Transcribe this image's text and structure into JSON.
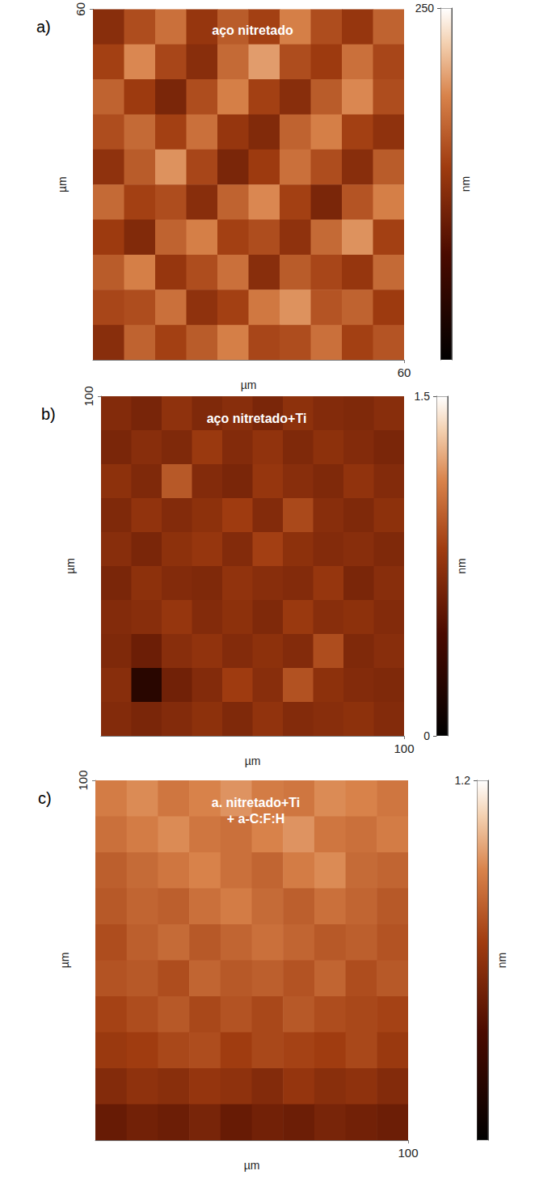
{
  "chart_data": [
    {
      "type": "heatmap",
      "label": "a)",
      "title": "aço nitretado",
      "xlabel": "µm",
      "ylabel": "µm",
      "xlim": [
        0,
        60
      ],
      "ylim": [
        0,
        60
      ],
      "xticks": [
        60
      ],
      "yticks": [
        60
      ],
      "z": [
        [
          120,
          150,
          175,
          130,
          160,
          140,
          185,
          150,
          130,
          165
        ],
        [
          140,
          190,
          145,
          120,
          170,
          200,
          150,
          135,
          175,
          145
        ],
        [
          165,
          135,
          110,
          150,
          185,
          140,
          120,
          160,
          190,
          150
        ],
        [
          150,
          170,
          140,
          175,
          130,
          115,
          165,
          185,
          140,
          125
        ],
        [
          125,
          160,
          195,
          145,
          110,
          135,
          175,
          150,
          120,
          160
        ],
        [
          170,
          140,
          150,
          120,
          165,
          190,
          140,
          110,
          155,
          185
        ],
        [
          135,
          115,
          165,
          185,
          140,
          150,
          125,
          170,
          195,
          140
        ],
        [
          160,
          185,
          130,
          150,
          175,
          120,
          160,
          145,
          130,
          170
        ],
        [
          145,
          150,
          175,
          125,
          140,
          180,
          195,
          155,
          165,
          135
        ],
        [
          120,
          165,
          140,
          160,
          185,
          145,
          150,
          175,
          140,
          155
        ]
      ],
      "colorbar": {
        "range": [
          0,
          250
        ],
        "ticks": [
          250
        ],
        "label": "nm"
      }
    },
    {
      "type": "heatmap",
      "label": "b)",
      "title": "aço nitretado+Ti",
      "xlabel": "µm",
      "ylabel": "µm",
      "xlim": [
        0,
        100
      ],
      "ylim": [
        0,
        100
      ],
      "xticks": [
        100
      ],
      "yticks": [
        100
      ],
      "z": [
        [
          0.7,
          0.65,
          0.75,
          0.68,
          0.72,
          0.66,
          0.74,
          0.7,
          0.68,
          0.72
        ],
        [
          0.66,
          0.72,
          0.68,
          0.8,
          0.7,
          0.76,
          0.68,
          0.74,
          0.7,
          0.66
        ],
        [
          0.74,
          0.68,
          0.95,
          0.7,
          0.66,
          0.78,
          0.72,
          0.68,
          0.76,
          0.7
        ],
        [
          0.68,
          0.76,
          0.7,
          0.74,
          0.82,
          0.7,
          0.88,
          0.72,
          0.68,
          0.74
        ],
        [
          0.72,
          0.66,
          0.74,
          0.78,
          0.7,
          0.84,
          0.74,
          0.7,
          0.72,
          0.68
        ],
        [
          0.66,
          0.74,
          0.7,
          0.68,
          0.76,
          0.72,
          0.7,
          0.78,
          0.66,
          0.72
        ],
        [
          0.7,
          0.72,
          0.78,
          0.7,
          0.74,
          0.68,
          0.8,
          0.72,
          0.74,
          0.7
        ],
        [
          0.68,
          0.6,
          0.72,
          0.76,
          0.7,
          0.74,
          0.7,
          0.9,
          0.68,
          0.72
        ],
        [
          0.72,
          0.25,
          0.62,
          0.7,
          0.82,
          0.72,
          0.92,
          0.74,
          0.7,
          0.68
        ],
        [
          0.7,
          0.66,
          0.7,
          0.74,
          0.68,
          0.76,
          0.7,
          0.72,
          0.74,
          0.7
        ]
      ],
      "colorbar": {
        "range": [
          0,
          1.5
        ],
        "ticks": [
          0,
          1.5
        ],
        "label": "nm"
      }
    },
    {
      "type": "heatmap",
      "label": "c)",
      "title": "a. nitretado+Ti\n+ a-C:F:H",
      "xlabel": "µm",
      "ylabel": "µm",
      "xlim": [
        0,
        100
      ],
      "ylim": [
        0,
        100
      ],
      "xticks": [
        100
      ],
      "yticks": [
        100
      ],
      "z": [
        [
          0.88,
          0.92,
          0.86,
          0.9,
          0.94,
          0.88,
          0.86,
          0.92,
          0.9,
          0.86
        ],
        [
          0.84,
          0.88,
          0.92,
          0.86,
          0.84,
          0.9,
          0.94,
          0.86,
          0.84,
          0.88
        ],
        [
          0.78,
          0.82,
          0.86,
          0.9,
          0.84,
          0.8,
          0.88,
          0.92,
          0.82,
          0.8
        ],
        [
          0.76,
          0.8,
          0.78,
          0.84,
          0.88,
          0.82,
          0.78,
          0.84,
          0.8,
          0.76
        ],
        [
          0.72,
          0.78,
          0.82,
          0.76,
          0.8,
          0.84,
          0.8,
          0.76,
          0.78,
          0.74
        ],
        [
          0.74,
          0.76,
          0.72,
          0.8,
          0.76,
          0.78,
          0.74,
          0.8,
          0.72,
          0.76
        ],
        [
          0.68,
          0.72,
          0.76,
          0.7,
          0.74,
          0.7,
          0.76,
          0.72,
          0.7,
          0.68
        ],
        [
          0.64,
          0.66,
          0.7,
          0.72,
          0.66,
          0.7,
          0.68,
          0.66,
          0.7,
          0.64
        ],
        [
          0.56,
          0.6,
          0.58,
          0.62,
          0.6,
          0.56,
          0.62,
          0.58,
          0.6,
          0.56
        ],
        [
          0.46,
          0.5,
          0.48,
          0.52,
          0.46,
          0.5,
          0.48,
          0.52,
          0.5,
          0.48
        ]
      ],
      "colorbar": {
        "range": [
          0,
          1.2
        ],
        "ticks": [
          1.2
        ],
        "label": "nm"
      }
    }
  ]
}
